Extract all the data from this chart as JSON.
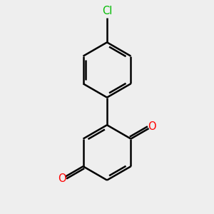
{
  "background_color": "#eeeeee",
  "bond_color": "#000000",
  "bond_width": 1.8,
  "cl_color": "#00bb00",
  "o_color": "#ff0000",
  "cl_label": "Cl",
  "o_label": "O",
  "font_size_cl": 10.5,
  "font_size_o": 10.5,
  "figsize": [
    3.0,
    3.0
  ],
  "dpi": 100
}
